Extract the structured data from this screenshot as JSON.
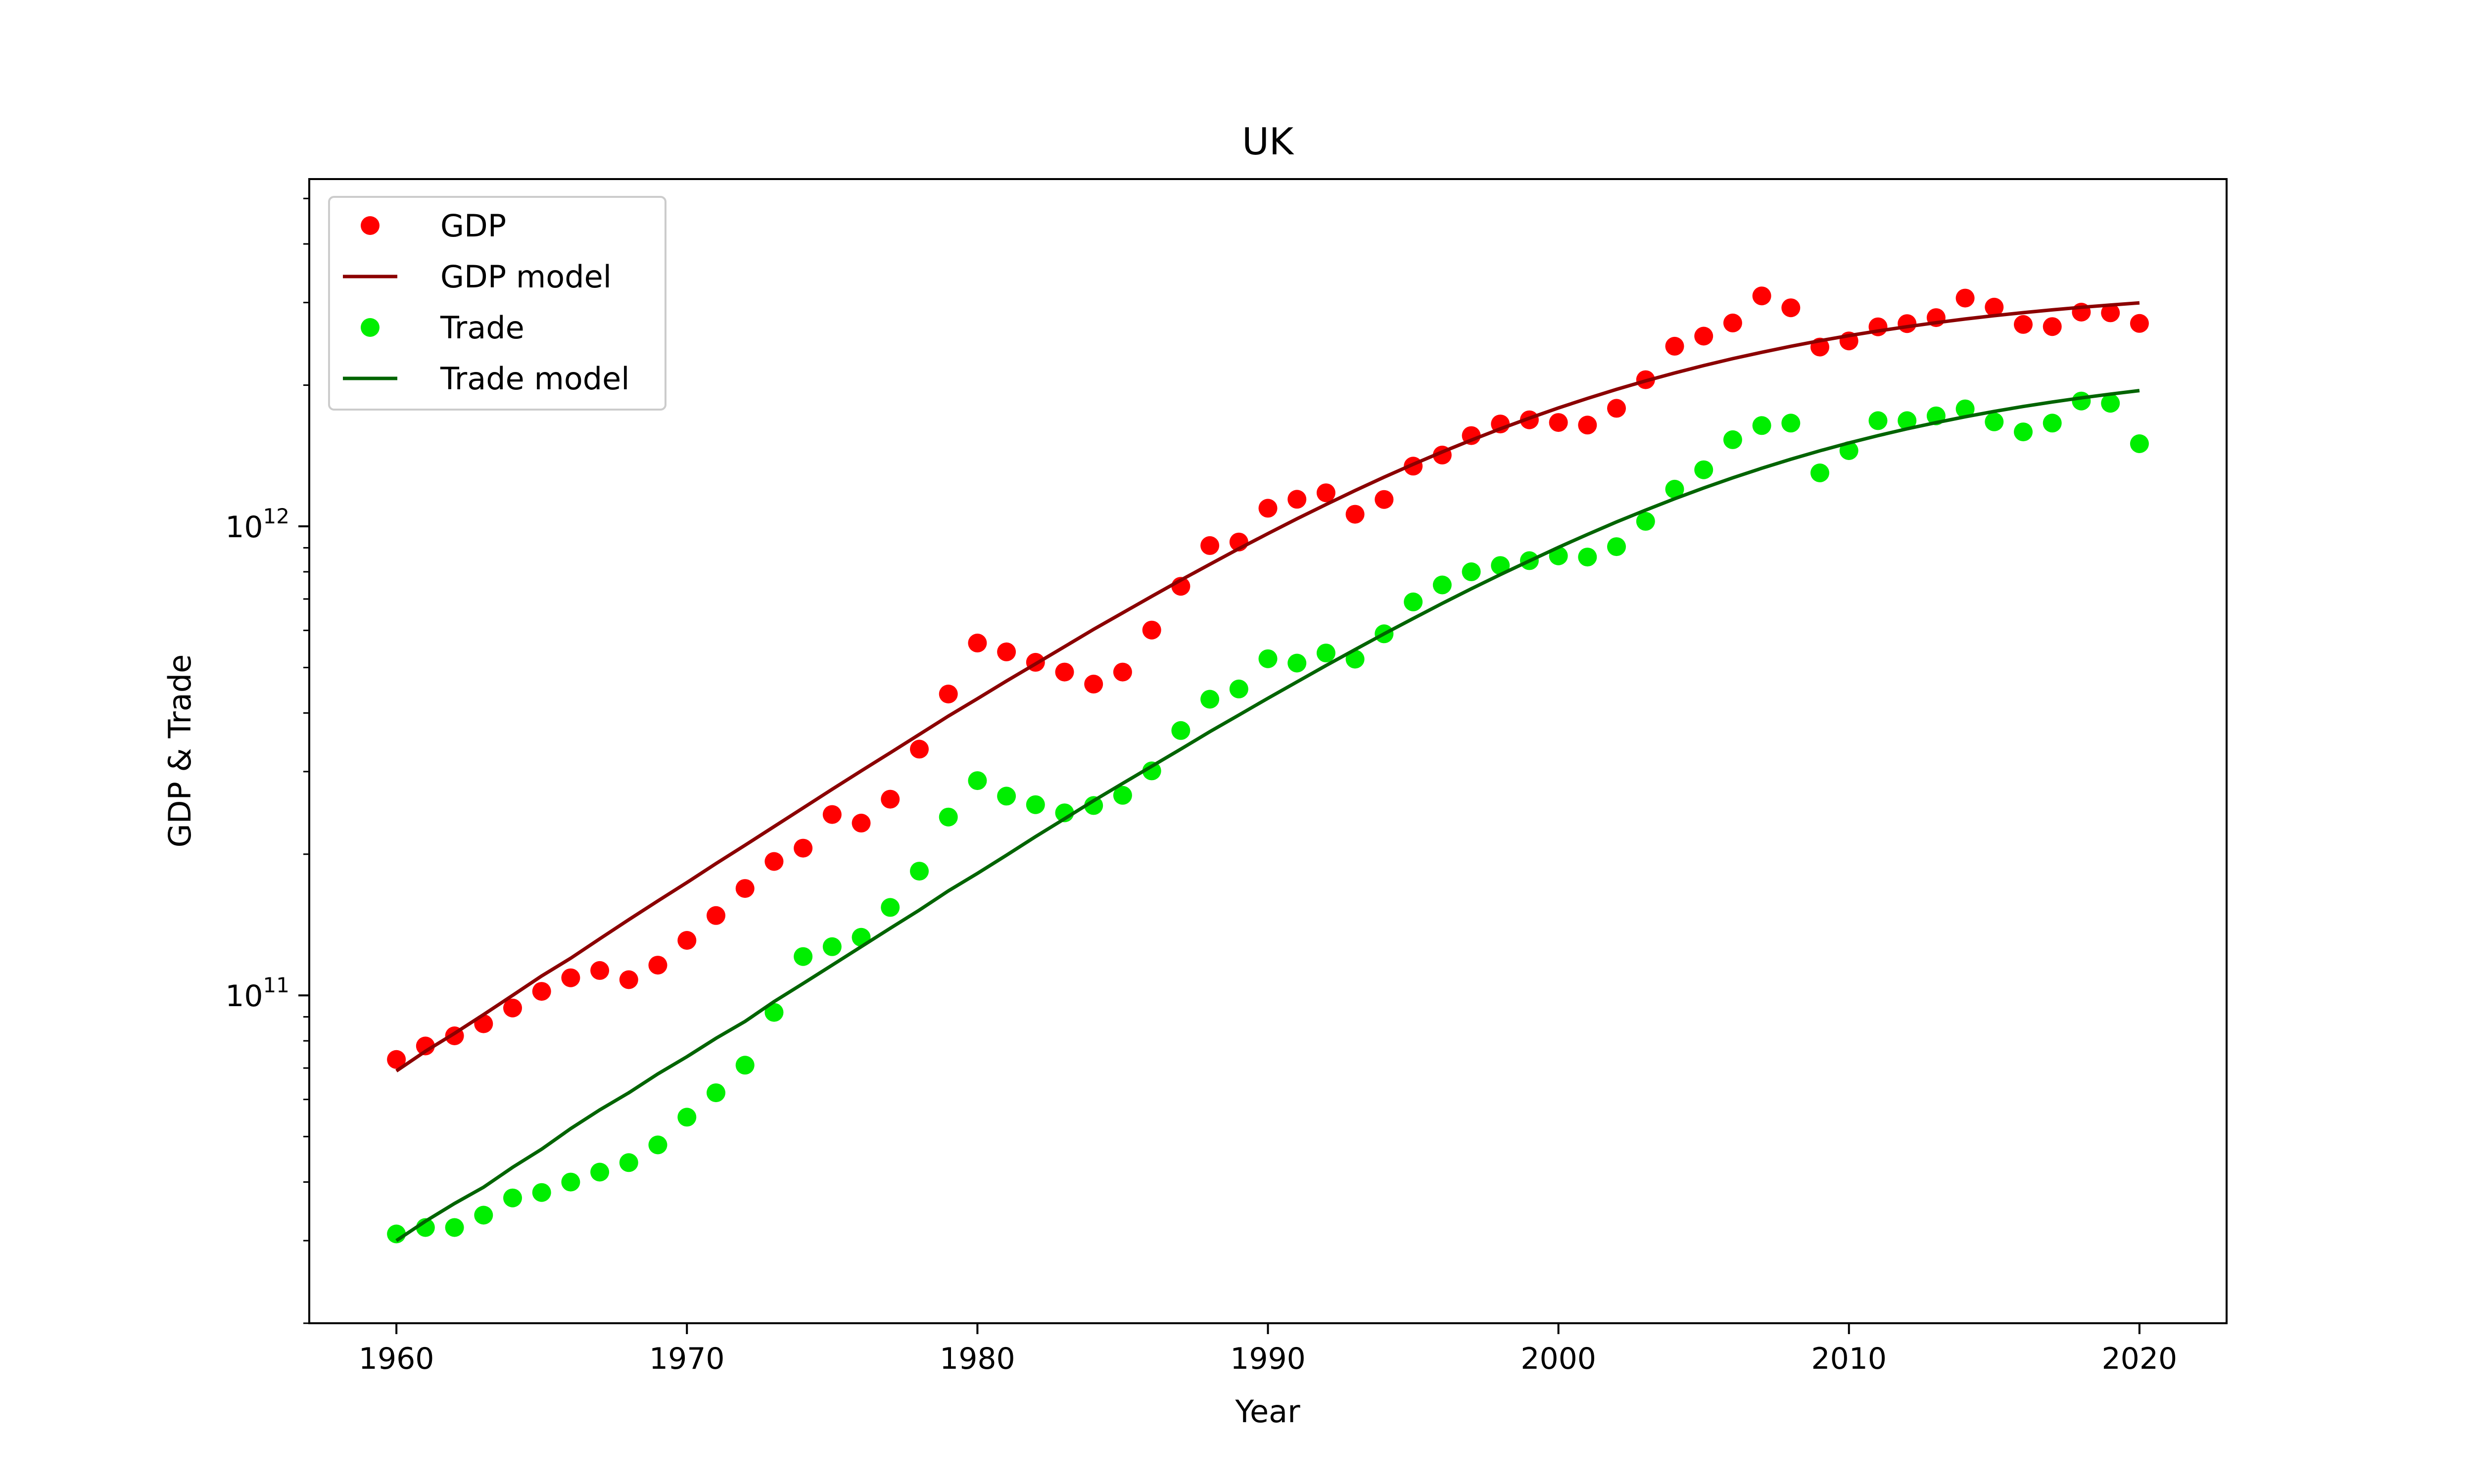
{
  "chart_data": {
    "type": "scatter",
    "title": "UK",
    "xlabel": "Year",
    "ylabel": "GDP & Trade",
    "xlim": [
      1957,
      2023
    ],
    "ylim": [
      20000000000,
      5500000000000
    ],
    "yscale": "log",
    "x_ticks": [
      1960,
      1970,
      1980,
      1990,
      2000,
      2010,
      2020
    ],
    "y_ticks": [
      {
        "value": 100000000000,
        "base": "10",
        "exp": "11"
      },
      {
        "value": 1000000000000,
        "base": "10",
        "exp": "12"
      }
    ],
    "grid": false,
    "legend": {
      "position": "top-left"
    },
    "x": [
      1960,
      1961,
      1962,
      1963,
      1964,
      1965,
      1966,
      1967,
      1968,
      1969,
      1970,
      1971,
      1972,
      1973,
      1974,
      1975,
      1976,
      1977,
      1978,
      1979,
      1980,
      1981,
      1982,
      1983,
      1984,
      1985,
      1986,
      1987,
      1988,
      1989,
      1990,
      1991,
      1992,
      1993,
      1994,
      1995,
      1996,
      1997,
      1998,
      1999,
      2000,
      2001,
      2002,
      2003,
      2004,
      2005,
      2006,
      2007,
      2008,
      2009,
      2010,
      2011,
      2012,
      2013,
      2014,
      2015,
      2016,
      2017,
      2018,
      2019,
      2020
    ],
    "series": [
      {
        "name": "GDP",
        "kind": "scatter",
        "color": "#ff0000",
        "values": [
          73000000000,
          78000000000,
          82000000000,
          87000000000,
          94000000000,
          102000000000,
          109000000000,
          113000000000,
          108000000000,
          116000000000,
          131000000000,
          148000000000,
          169000000000,
          193000000000,
          206000000000,
          243000000000,
          233000000000,
          262000000000,
          335000000000,
          439000000000,
          564000000000,
          540000000000,
          513000000000,
          489000000000,
          461000000000,
          489000000000,
          601000000000,
          745000000000,
          910000000000,
          926000000000,
          1093000000000,
          1142000000000,
          1179000000000,
          1061000000000,
          1141000000000,
          1344000000000,
          1419000000000,
          1561000000000,
          1653000000000,
          1687000000000,
          1665000000000,
          1644000000000,
          1785000000000,
          2054000000000,
          2421000000000,
          2544000000000,
          2714000000000,
          3099000000000,
          2924000000000,
          2411000000000,
          2485000000000,
          2663000000000,
          2705000000000,
          2786000000000,
          3066000000000,
          2933000000000,
          2694000000000,
          2666000000000,
          2862000000000,
          2852000000000,
          2708000000000
        ]
      },
      {
        "name": "GDP model",
        "kind": "line",
        "color": "#8b0000",
        "values": [
          69000000000,
          76000000000,
          83000000000,
          91000000000,
          100000000000,
          110000000000,
          120000000000,
          132000000000,
          145000000000,
          159000000000,
          174000000000,
          191000000000,
          209000000000,
          229000000000,
          251000000000,
          275000000000,
          301000000000,
          329000000000,
          360000000000,
          394000000000,
          429000000000,
          468000000000,
          509000000000,
          554000000000,
          603000000000,
          654000000000,
          709000000000,
          768000000000,
          830000000000,
          896000000000,
          965000000000,
          1038000000000,
          1113000000000,
          1192000000000,
          1273000000000,
          1356000000000,
          1441000000000,
          1527000000000,
          1614000000000,
          1701000000000,
          1788000000000,
          1874000000000,
          1959000000000,
          2042000000000,
          2123000000000,
          2202000000000,
          2278000000000,
          2350000000000,
          2420000000000,
          2487000000000,
          2550000000000,
          2609000000000,
          2665000000000,
          2718000000000,
          2767000000000,
          2813000000000,
          2855000000000,
          2894000000000,
          2931000000000,
          2964000000000,
          2995000000000
        ]
      },
      {
        "name": "Trade",
        "kind": "scatter",
        "color": "#00ee00",
        "values": [
          31000000000,
          32000000000,
          32000000000,
          34000000000,
          37000000000,
          38000000000,
          40000000000,
          42000000000,
          44000000000,
          48000000000,
          55000000000,
          62000000000,
          71000000000,
          92000000000,
          121000000000,
          127000000000,
          133000000000,
          154000000000,
          184000000000,
          240000000000,
          287000000000,
          266000000000,
          255000000000,
          245000000000,
          254000000000,
          267000000000,
          301000000000,
          367000000000,
          428000000000,
          450000000000,
          522000000000,
          511000000000,
          537000000000,
          521000000000,
          590000000000,
          690000000000,
          750000000000,
          800000000000,
          825000000000,
          845000000000,
          865000000000,
          860000000000,
          905000000000,
          1025000000000,
          1200000000000,
          1320000000000,
          1530000000000,
          1640000000000,
          1660000000000,
          1300000000000,
          1450000000000,
          1680000000000,
          1680000000000,
          1720000000000,
          1780000000000,
          1670000000000,
          1590000000000,
          1660000000000,
          1850000000000,
          1830000000000,
          1500000000000
        ]
      },
      {
        "name": "Trade model",
        "kind": "line",
        "color": "#006400",
        "values": [
          30000000000,
          33000000000,
          36000000000,
          39000000000,
          43000000000,
          47000000000,
          52000000000,
          57000000000,
          62000000000,
          68000000000,
          74000000000,
          81000000000,
          88000000000,
          97000000000,
          106000000000,
          116000000000,
          127000000000,
          139000000000,
          152000000000,
          167000000000,
          182000000000,
          199000000000,
          218000000000,
          238000000000,
          260000000000,
          283000000000,
          308000000000,
          335000000000,
          365000000000,
          396000000000,
          430000000000,
          466000000000,
          505000000000,
          546000000000,
          590000000000,
          636000000000,
          685000000000,
          736000000000,
          789000000000,
          844000000000,
          902000000000,
          961000000000,
          1022000000000,
          1083000000000,
          1145000000000,
          1207000000000,
          1269000000000,
          1330000000000,
          1390000000000,
          1449000000000,
          1506000000000,
          1561000000000,
          1614000000000,
          1664000000000,
          1712000000000,
          1758000000000,
          1801000000000,
          1841000000000,
          1879000000000,
          1914000000000,
          1947000000000
        ]
      }
    ]
  }
}
